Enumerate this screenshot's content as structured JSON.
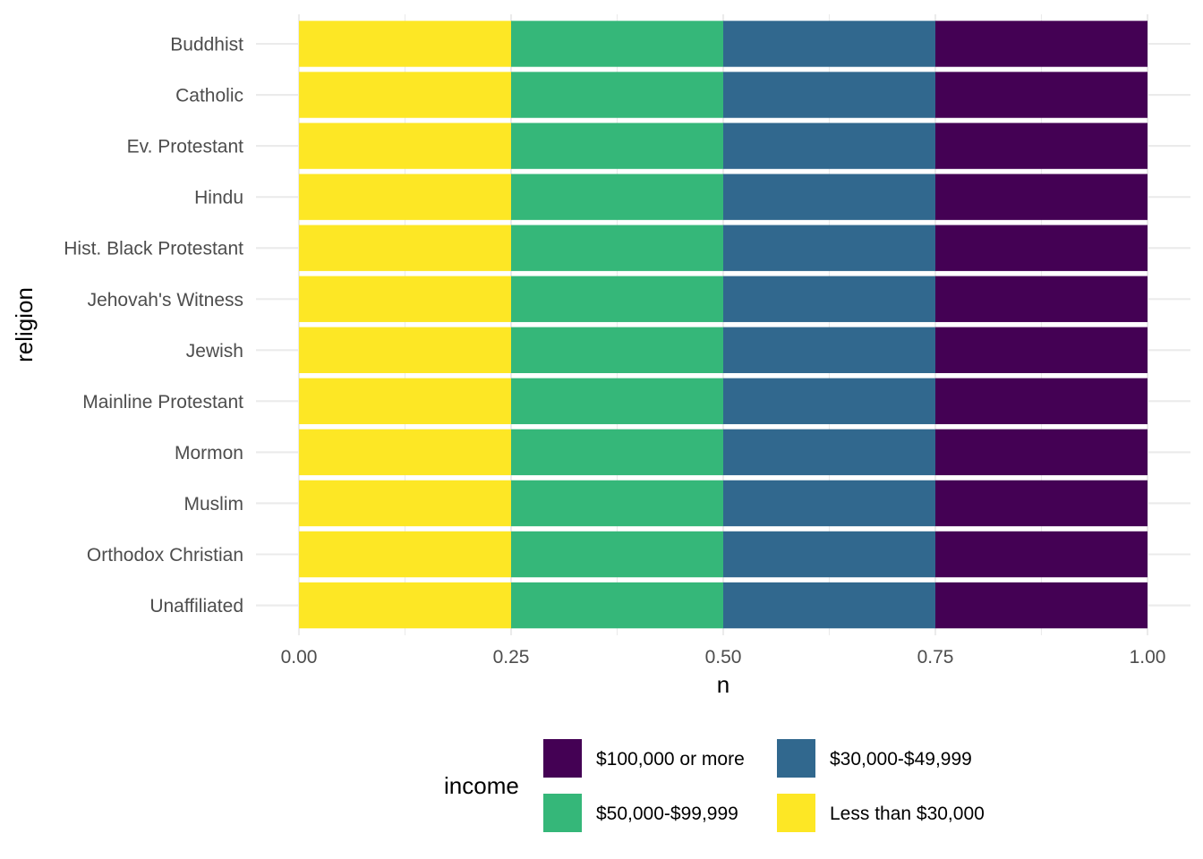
{
  "chart_data": {
    "type": "bar",
    "orientation": "horizontal",
    "stacked": true,
    "xlabel": "n",
    "ylabel": "religion",
    "xlim": [
      0,
      1
    ],
    "x_ticks": [
      "0.00",
      "0.25",
      "0.50",
      "0.75",
      "1.00"
    ],
    "grid": true,
    "categories": [
      "Buddhist",
      "Catholic",
      "Ev. Protestant",
      "Hindu",
      "Hist. Black Protestant",
      "Jehovah's Witness",
      "Jewish",
      "Mainline Protestant",
      "Mormon",
      "Muslim",
      "Orthodox Christian",
      "Unaffiliated"
    ],
    "series": [
      {
        "name": "Less than $30,000",
        "color": "#fde725",
        "values": [
          0.25,
          0.25,
          0.25,
          0.25,
          0.25,
          0.25,
          0.25,
          0.25,
          0.25,
          0.25,
          0.25,
          0.25
        ]
      },
      {
        "name": "$50,000-$99,999",
        "color": "#35b779",
        "values": [
          0.25,
          0.25,
          0.25,
          0.25,
          0.25,
          0.25,
          0.25,
          0.25,
          0.25,
          0.25,
          0.25,
          0.25
        ]
      },
      {
        "name": "$30,000-$49,999",
        "color": "#31688e",
        "values": [
          0.25,
          0.25,
          0.25,
          0.25,
          0.25,
          0.25,
          0.25,
          0.25,
          0.25,
          0.25,
          0.25,
          0.25
        ]
      },
      {
        "name": "$100,000 or more",
        "color": "#440154",
        "values": [
          0.25,
          0.25,
          0.25,
          0.25,
          0.25,
          0.25,
          0.25,
          0.25,
          0.25,
          0.25,
          0.25,
          0.25
        ]
      }
    ],
    "legend": {
      "title": "income",
      "placement": "bottom",
      "items": [
        {
          "label": "$100,000 or more",
          "color": "#440154"
        },
        {
          "label": "$30,000-$49,999",
          "color": "#31688e"
        },
        {
          "label": "$50,000-$99,999",
          "color": "#35b779"
        },
        {
          "label": "Less than $30,000",
          "color": "#fde725"
        }
      ]
    }
  }
}
